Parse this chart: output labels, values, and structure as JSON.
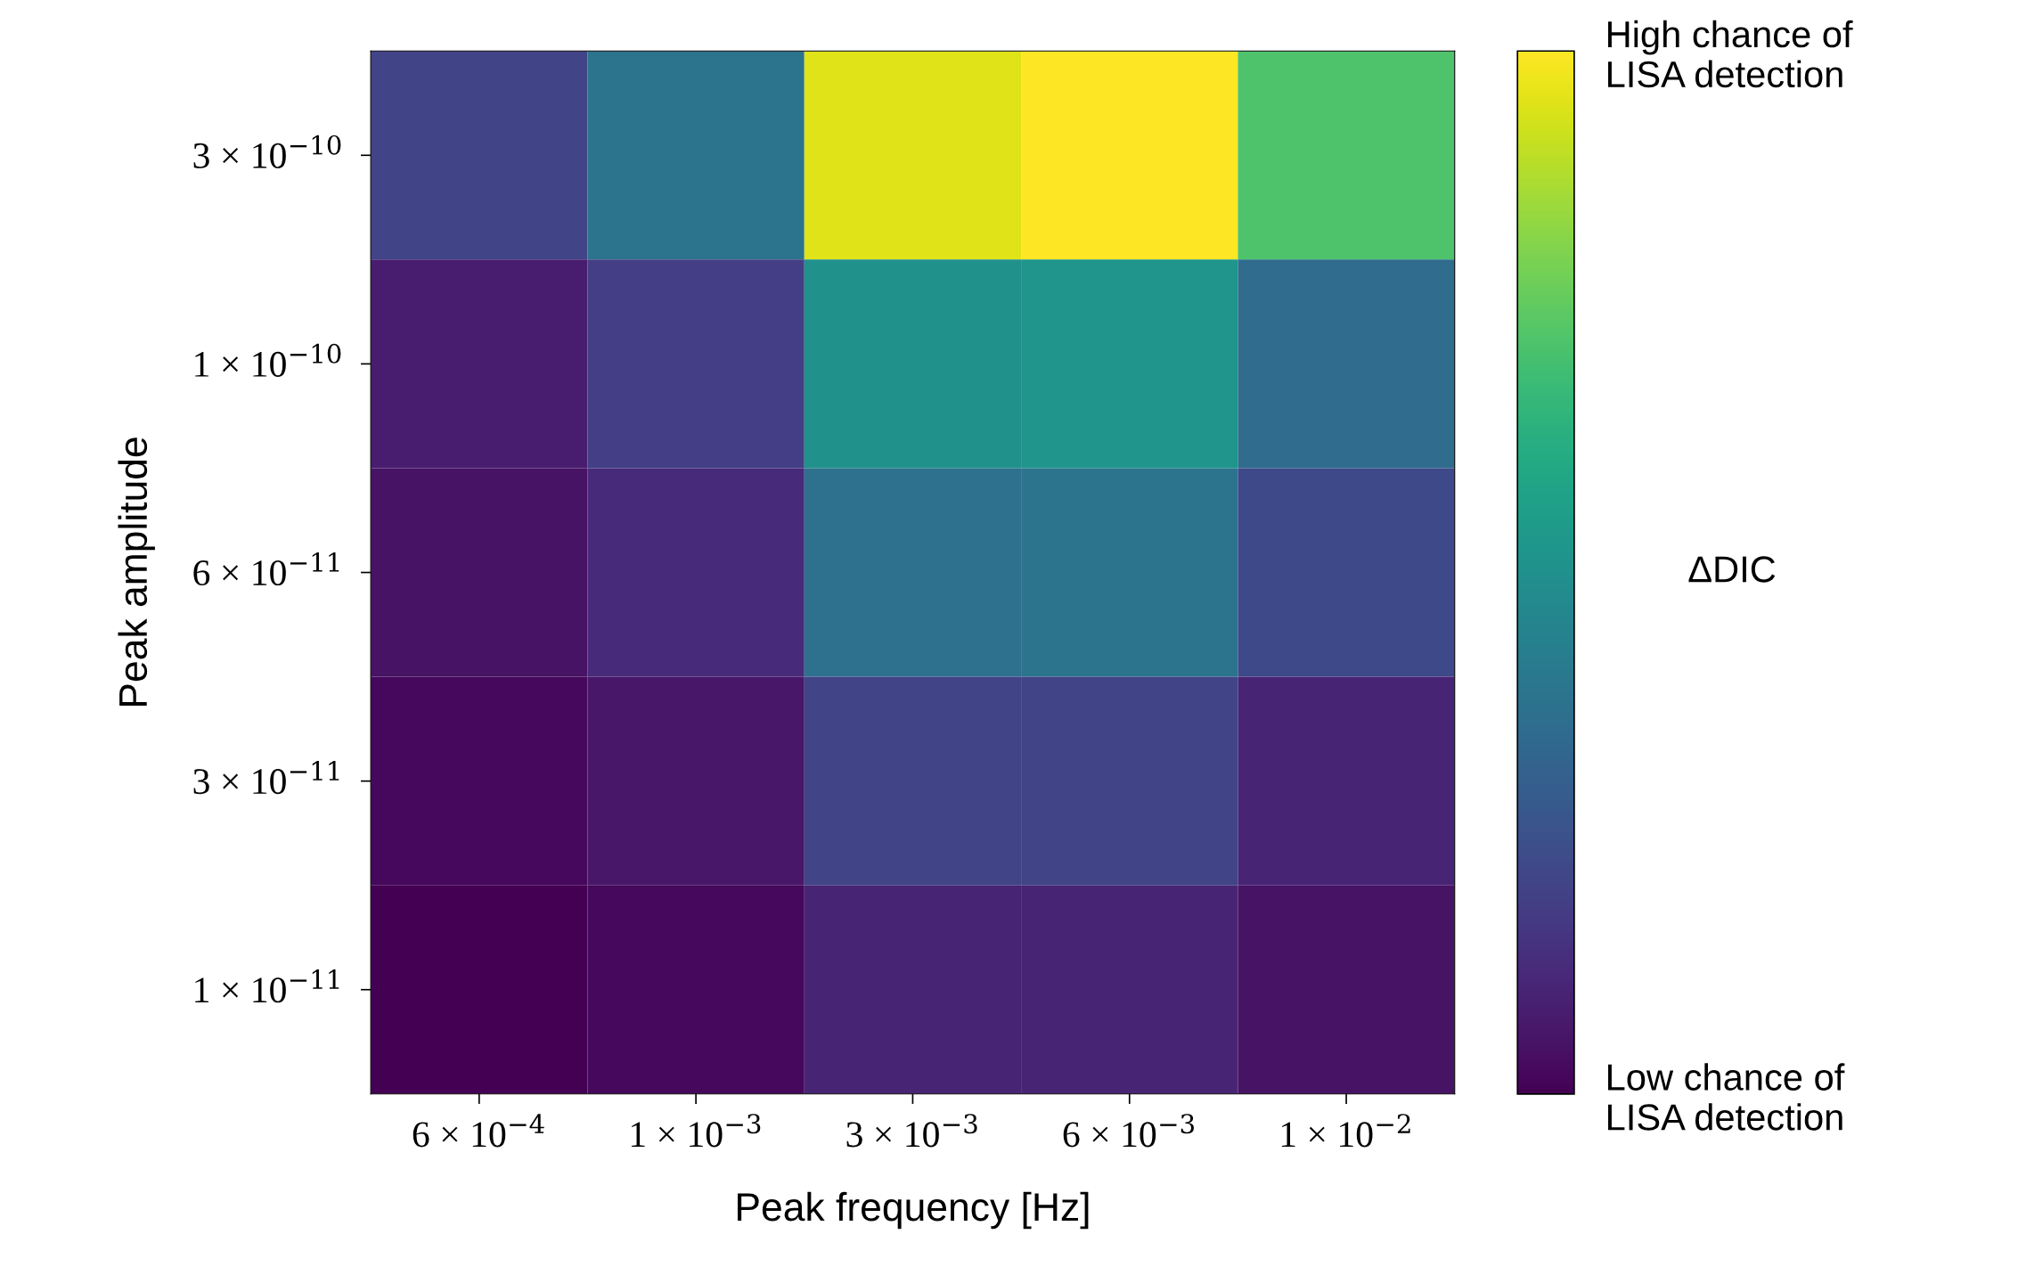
{
  "chart_data": {
    "type": "heatmap",
    "xlabel": "Peak frequency [Hz]",
    "ylabel": "Peak amplitude",
    "clabel": "ΔDIC",
    "categories": [
      "6 × 10$^{−4}$",
      "1 × 10$^{−3}$",
      "3 × 10$^{−3}$",
      "6 × 10$^{−3}$",
      "1 × 10$^{−2}$"
    ],
    "y_categories": [
      "3 × 10$^{−10}$",
      "1 × 10$^{−10}$",
      "6 × 10$^{−11}$",
      "3 × 10$^{−11}$",
      "1 × 10$^{−11}$"
    ],
    "cells": [
      [
        0.2,
        0.38,
        0.95,
        1.0,
        0.72
      ],
      [
        0.08,
        0.18,
        0.5,
        0.52,
        0.35
      ],
      [
        0.05,
        0.12,
        0.37,
        0.38,
        0.22
      ],
      [
        0.02,
        0.06,
        0.2,
        0.2,
        0.1
      ],
      [
        0.0,
        0.02,
        0.1,
        0.1,
        0.05
      ]
    ],
    "clim": [
      0,
      1
    ],
    "cticks": [
      {
        "value": 0,
        "label": "Low chance of\nLISA detection"
      },
      {
        "value": 1,
        "label": "High chance of\nLISA detection"
      }
    ]
  }
}
